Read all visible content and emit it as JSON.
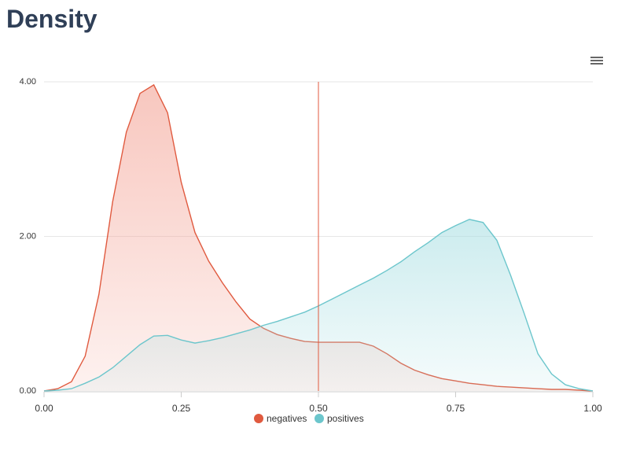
{
  "page": {
    "title": "Density"
  },
  "menu": {
    "icon": "hamburger-menu-icon"
  },
  "colors": {
    "negatives": "#e05a3f",
    "negatives_fill": "#f4a79a",
    "positives": "#6cc6cc",
    "positives_fill": "#a9dfe3",
    "threshold": "#e05a3f",
    "grid": "#e6e6e6",
    "axis": "#cccccc"
  },
  "chart_data": {
    "type": "area",
    "title": "Density",
    "xlabel": "",
    "ylabel": "",
    "xlim": [
      0,
      1
    ],
    "ylim": [
      0,
      4
    ],
    "x_ticks": [
      "0.00",
      "0.25",
      "0.50",
      "0.75",
      "1.00"
    ],
    "y_ticks": [
      "0.00",
      "2.00",
      "4.00"
    ],
    "grid": true,
    "legend_position": "bottom-center",
    "threshold": 0.5,
    "x": [
      0.0,
      0.025,
      0.05,
      0.075,
      0.1,
      0.125,
      0.15,
      0.175,
      0.2,
      0.225,
      0.25,
      0.275,
      0.3,
      0.325,
      0.35,
      0.375,
      0.4,
      0.425,
      0.45,
      0.475,
      0.5,
      0.525,
      0.55,
      0.575,
      0.6,
      0.625,
      0.65,
      0.675,
      0.7,
      0.725,
      0.75,
      0.775,
      0.8,
      0.825,
      0.85,
      0.875,
      0.9,
      0.925,
      0.95,
      0.975,
      1.0
    ],
    "series": [
      {
        "name": "negatives",
        "values": [
          0.0,
          0.03,
          0.12,
          0.45,
          1.25,
          2.45,
          3.35,
          3.85,
          3.96,
          3.6,
          2.7,
          2.05,
          1.68,
          1.4,
          1.15,
          0.93,
          0.81,
          0.73,
          0.68,
          0.64,
          0.63,
          0.63,
          0.63,
          0.63,
          0.58,
          0.48,
          0.36,
          0.27,
          0.21,
          0.16,
          0.13,
          0.1,
          0.08,
          0.06,
          0.05,
          0.04,
          0.03,
          0.02,
          0.02,
          0.01,
          0.0
        ]
      },
      {
        "name": "positives",
        "values": [
          0.0,
          0.01,
          0.03,
          0.1,
          0.18,
          0.3,
          0.45,
          0.6,
          0.71,
          0.72,
          0.66,
          0.62,
          0.65,
          0.69,
          0.74,
          0.79,
          0.85,
          0.9,
          0.96,
          1.02,
          1.1,
          1.19,
          1.28,
          1.37,
          1.46,
          1.56,
          1.67,
          1.8,
          1.92,
          2.05,
          2.14,
          2.22,
          2.18,
          1.95,
          1.5,
          1.0,
          0.48,
          0.22,
          0.08,
          0.03,
          0.0
        ]
      }
    ]
  }
}
